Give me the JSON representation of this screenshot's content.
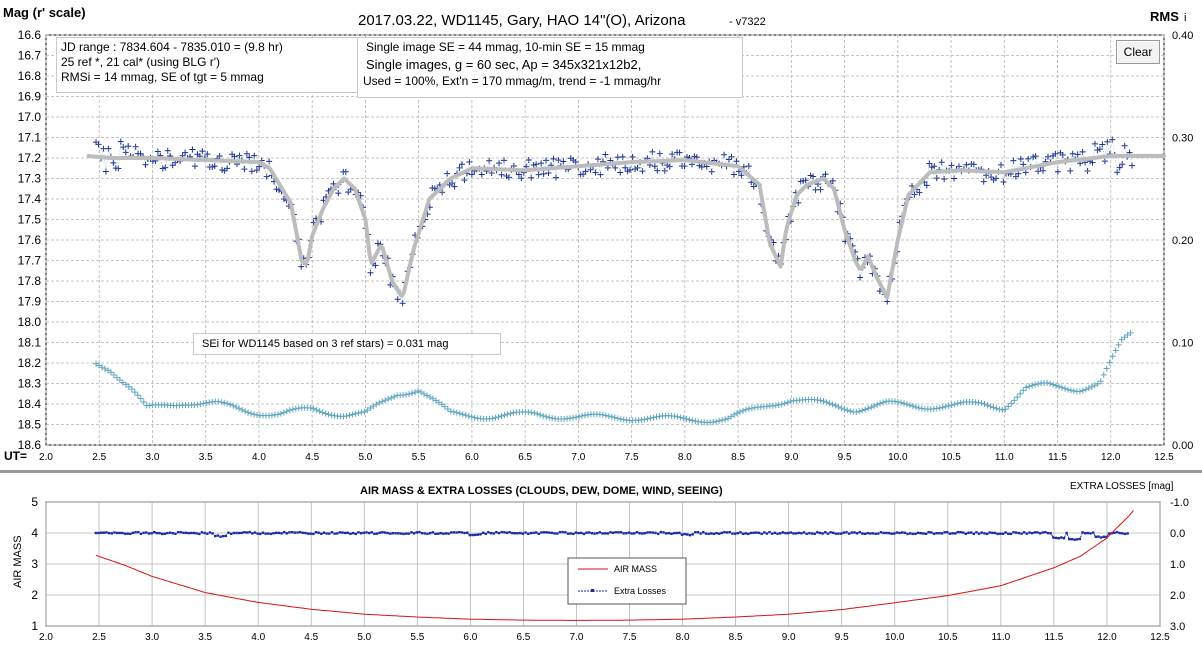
{
  "colors": {
    "points": "#1a2f8c",
    "trend": "#bcbcbc",
    "rms": "#5fa6c0",
    "airmass": "#d21414",
    "losses": "#1a2aa0",
    "grid": "#b4b4b4",
    "box_border": "#c9c9c9"
  },
  "header": {
    "mag_axis_label": "Mag (r' scale)",
    "title": "2017.03.22,  WD1145, Gary, HAO  14\"(O), Arizona",
    "version": "- v7322",
    "rms_label": "RMS",
    "rms_glyph": "i",
    "ut_label": "UT="
  },
  "clear_button": {
    "label": "Clear"
  },
  "info_box_1": {
    "lines": [
      "JD range  : 7834.604 - 7835.010  = (9.8 hr)",
      "25 ref *, 21 cal* (using BLG r')",
      "RMSi = 14 mmag, SE of tgt = 5 mmag"
    ]
  },
  "info_box_2": {
    "line1": "Single image SE = 44 mmag, 10-min SE = 15 mmag",
    "line2": "Single images, g = 60 sec, Ap = 345x321x12b2,",
    "line3": "Used = 100%, Ext'n = 170 mmag/m, trend = -1 mmag/hr"
  },
  "sei_note": "SEi for WD1145 based on 3 ref stars) = 0.031 mag",
  "chart_data": [
    {
      "type": "scatter",
      "title": "2017.03.22,  WD1145, Gary, HAO  14\"(O), Arizona",
      "xlabel": "UT=",
      "ylabel": "Mag (r' scale)",
      "y2label": "RMS",
      "xlim": [
        2.0,
        12.5
      ],
      "ylim": [
        16.6,
        18.6
      ],
      "y_inverted": true,
      "y2lim": [
        0.0,
        0.4
      ],
      "grid": true,
      "x_ticks": [
        "2.0",
        "2.5",
        "3.0",
        "3.5",
        "4.0",
        "4.5",
        "5.0",
        "5.5",
        "6.0",
        "6.5",
        "7.0",
        "7.5",
        "8.0",
        "8.5",
        "9.0",
        "9.5",
        "10.0",
        "10.5",
        "11.0",
        "11.5",
        "12.0",
        "12.5"
      ],
      "y_ticks": [
        "16.6",
        "16.7",
        "16.8",
        "16.9",
        "17.0",
        "17.1",
        "17.2",
        "17.3",
        "17.4",
        "17.5",
        "17.6",
        "17.7",
        "17.8",
        "17.9",
        "18.0",
        "18.1",
        "18.2",
        "18.3",
        "18.4",
        "18.5",
        "18.6"
      ],
      "y2_ticks": [
        "0.00",
        "0.10",
        "0.20",
        "0.30",
        "0.40"
      ],
      "trend": {
        "x": [
          2.4,
          2.6,
          3.0,
          3.5,
          4.0,
          4.1,
          4.3,
          4.4,
          4.45,
          4.5,
          4.6,
          4.7,
          4.8,
          4.9,
          5.0,
          5.05,
          5.15,
          5.25,
          5.35,
          5.45,
          5.6,
          5.8,
          6.0,
          6.5,
          7.0,
          7.5,
          8.0,
          8.5,
          8.7,
          8.8,
          8.9,
          8.95,
          9.05,
          9.15,
          9.3,
          9.4,
          9.5,
          9.6,
          9.65,
          9.72,
          9.8,
          9.9,
          10.0,
          10.1,
          10.3,
          10.6,
          11.0,
          11.5,
          12.0,
          12.5
        ],
        "y": [
          17.19,
          17.2,
          17.2,
          17.21,
          17.22,
          17.25,
          17.42,
          17.7,
          17.72,
          17.58,
          17.45,
          17.35,
          17.3,
          17.35,
          17.5,
          17.72,
          17.62,
          17.8,
          17.88,
          17.65,
          17.4,
          17.3,
          17.25,
          17.26,
          17.24,
          17.22,
          17.21,
          17.24,
          17.33,
          17.62,
          17.73,
          17.55,
          17.38,
          17.33,
          17.3,
          17.35,
          17.55,
          17.7,
          17.75,
          17.68,
          17.78,
          17.88,
          17.6,
          17.38,
          17.27,
          17.26,
          17.27,
          17.22,
          17.19,
          17.19
        ]
      },
      "points_seed": {
        "x_start": 2.47,
        "x_end": 12.2,
        "n": 420,
        "spread": 0.05
      },
      "rms": {
        "x": [
          2.47,
          2.6,
          2.8,
          2.95,
          3.1,
          3.3,
          3.6,
          3.9,
          4.2,
          4.5,
          4.8,
          5.0,
          5.3,
          5.5,
          5.8,
          6.2,
          6.6,
          7.0,
          7.5,
          8.0,
          8.4,
          8.8,
          9.0,
          9.3,
          9.6,
          9.9,
          10.2,
          10.5,
          10.8,
          11.0,
          11.2,
          11.4,
          11.7,
          11.9,
          12.1,
          12.2
        ],
        "y": [
          0.08,
          0.075,
          0.055,
          0.035,
          0.038,
          0.042,
          0.04,
          0.033,
          0.03,
          0.035,
          0.03,
          0.03,
          0.05,
          0.055,
          0.03,
          0.028,
          0.03,
          0.027,
          0.027,
          0.025,
          0.025,
          0.04,
          0.045,
          0.04,
          0.035,
          0.04,
          0.038,
          0.038,
          0.04,
          0.037,
          0.055,
          0.058,
          0.055,
          0.06,
          0.1,
          0.11
        ]
      }
    },
    {
      "type": "line",
      "title": "AIR MASS & EXTRA LOSSES (CLOUDS, DEW, DOME, WIND, SEEING)",
      "xlabel": "",
      "ylabel": "AIR MASS",
      "y2label": "EXTRA LOSSES [mag]",
      "xlim": [
        2.0,
        12.5
      ],
      "ylim": [
        1,
        5
      ],
      "y2lim": [
        3.0,
        -1.0
      ],
      "x_ticks": [
        "2.0",
        "2.5",
        "3.0",
        "3.5",
        "4.0",
        "4.5",
        "5.0",
        "5.5",
        "6.0",
        "6.5",
        "7.0",
        "7.5",
        "8.0",
        "8.5",
        "9.0",
        "9.5",
        "10.0",
        "10.5",
        "11.0",
        "11.5",
        "12.0",
        "12.5"
      ],
      "y_ticks": [
        "1",
        "2",
        "3",
        "4",
        "5"
      ],
      "y2_ticks": [
        "3.0",
        "2.0",
        "1.0",
        "0.0",
        "-1.0"
      ],
      "series": [
        {
          "name": "AIR MASS",
          "x": [
            2.47,
            2.75,
            3.0,
            3.5,
            4.0,
            4.5,
            5.0,
            5.5,
            6.0,
            6.5,
            7.0,
            7.5,
            8.0,
            8.5,
            9.0,
            9.5,
            10.0,
            10.5,
            11.0,
            11.5,
            11.75,
            12.0,
            12.1,
            12.2,
            12.25
          ],
          "y": [
            3.28,
            2.95,
            2.6,
            2.08,
            1.76,
            1.54,
            1.38,
            1.29,
            1.22,
            1.19,
            1.18,
            1.19,
            1.22,
            1.29,
            1.38,
            1.53,
            1.75,
            1.98,
            2.3,
            2.88,
            3.25,
            3.84,
            4.19,
            4.52,
            4.73
          ]
        },
        {
          "name": "Extra Losses",
          "level": 0.0,
          "dips": [
            [
              3.65,
              0.1
            ],
            [
              6.05,
              0.05
            ],
            [
              8.05,
              0.05
            ],
            [
              11.55,
              0.15
            ],
            [
              11.7,
              0.2
            ],
            [
              11.95,
              0.12
            ]
          ]
        }
      ]
    }
  ]
}
